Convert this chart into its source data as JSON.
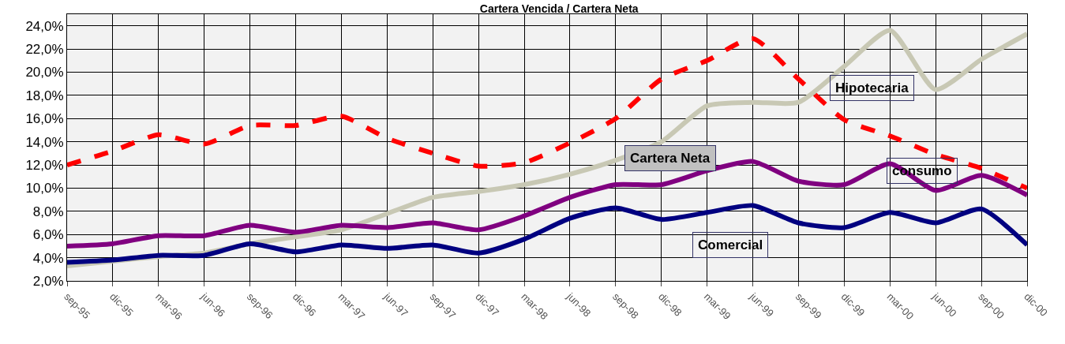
{
  "chart_data": {
    "type": "line",
    "title": "Cartera Vencida / Cartera Neta",
    "categories": [
      "sep-95",
      "dic-95",
      "mar-96",
      "jun-96",
      "sep-96",
      "dic-96",
      "mar-97",
      "jun-97",
      "sep-97",
      "dic-97",
      "mar-98",
      "jun-98",
      "sep-98",
      "dic-98",
      "mar-99",
      "jun-99",
      "sep-99",
      "dic-99",
      "mar-00",
      "jun-00",
      "sep-00",
      "dic-00"
    ],
    "series": [
      {
        "name": "consumo",
        "color": "#ff0000",
        "line_style": "dashed",
        "values": [
          12.0,
          13.2,
          14.6,
          13.8,
          15.4,
          15.4,
          16.2,
          14.3,
          13.0,
          11.9,
          12.2,
          13.9,
          16.0,
          19.4,
          21.0,
          22.9,
          19.4,
          15.9,
          14.5,
          12.9,
          11.7,
          10.0
        ]
      },
      {
        "name": "Hipotecaria",
        "color": "#c8c8b4",
        "line_style": "solid",
        "values": [
          3.3,
          3.7,
          4.1,
          4.4,
          5.2,
          5.8,
          6.4,
          7.8,
          9.2,
          9.7,
          10.3,
          11.2,
          12.4,
          14.0,
          17.1,
          17.4,
          17.4,
          20.5,
          23.6,
          18.5,
          21.1,
          23.3
        ]
      },
      {
        "name": "Cartera Neta",
        "color": "#800080",
        "line_style": "solid",
        "values": [
          5.0,
          5.2,
          5.9,
          5.9,
          6.8,
          6.2,
          6.8,
          6.6,
          7.0,
          6.4,
          7.6,
          9.2,
          10.3,
          10.3,
          11.5,
          12.3,
          10.6,
          10.3,
          12.1,
          9.8,
          11.1,
          9.4
        ]
      },
      {
        "name": "Comercial",
        "color": "#000080",
        "line_style": "solid",
        "values": [
          3.6,
          3.8,
          4.2,
          4.2,
          5.2,
          4.5,
          5.1,
          4.8,
          5.1,
          4.4,
          5.6,
          7.4,
          8.3,
          7.3,
          7.9,
          8.5,
          7.0,
          6.6,
          7.9,
          7.0,
          8.2,
          5.1
        ]
      }
    ],
    "ylim": [
      2,
      25
    ],
    "yticks": [
      {
        "value": 2,
        "label": "2,0%"
      },
      {
        "value": 4,
        "label": "4,0%"
      },
      {
        "value": 6,
        "label": "6,0%"
      },
      {
        "value": 8,
        "label": "8,0%"
      },
      {
        "value": 10,
        "label": "10,0%"
      },
      {
        "value": 12,
        "label": "12,0%"
      },
      {
        "value": 14,
        "label": "14,0%"
      },
      {
        "value": 16,
        "label": "16,0%"
      },
      {
        "value": 18,
        "label": "18,0%"
      },
      {
        "value": 20,
        "label": "20,0%"
      },
      {
        "value": 22,
        "label": "22,0%"
      },
      {
        "value": 24,
        "label": "24,0%"
      }
    ],
    "grid": true,
    "legend": false,
    "marker": "none"
  }
}
